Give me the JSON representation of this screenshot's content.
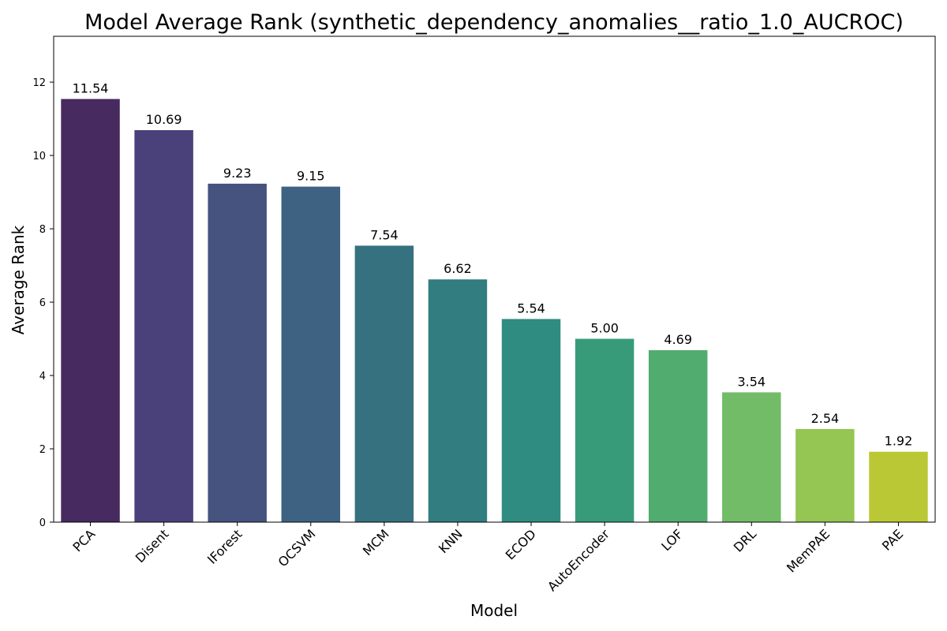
{
  "chart_data": {
    "type": "bar",
    "title": "Model Average Rank (synthetic_dependency_anomalies__ratio_1.0_AUCROC)",
    "xlabel": "Model",
    "ylabel": "Average Rank",
    "categories": [
      "PCA",
      "Disent",
      "IForest",
      "OCSVM",
      "MCM",
      "KNN",
      "ECOD",
      "AutoEncoder",
      "LOF",
      "DRL",
      "MemPAE",
      "PAE"
    ],
    "values": [
      11.54,
      10.69,
      9.23,
      9.15,
      7.54,
      6.62,
      5.54,
      5.0,
      4.69,
      3.54,
      2.54,
      1.92
    ],
    "data_labels": [
      "11.54",
      "10.69",
      "9.23",
      "9.15",
      "7.54",
      "6.62",
      "5.54",
      "5.00",
      "4.69",
      "3.54",
      "2.54",
      "1.92"
    ],
    "colors": [
      "#472a5f",
      "#4a407a",
      "#46537f",
      "#3e6382",
      "#36717f",
      "#317d7f",
      "#2f8c80",
      "#379b7a",
      "#51ac70",
      "#72bc67",
      "#95c552",
      "#bbc835"
    ],
    "yticks": [
      0,
      2,
      4,
      6,
      8,
      10,
      12
    ],
    "ylim": [
      0,
      13.25
    ],
    "grid": false,
    "legend": "none"
  }
}
